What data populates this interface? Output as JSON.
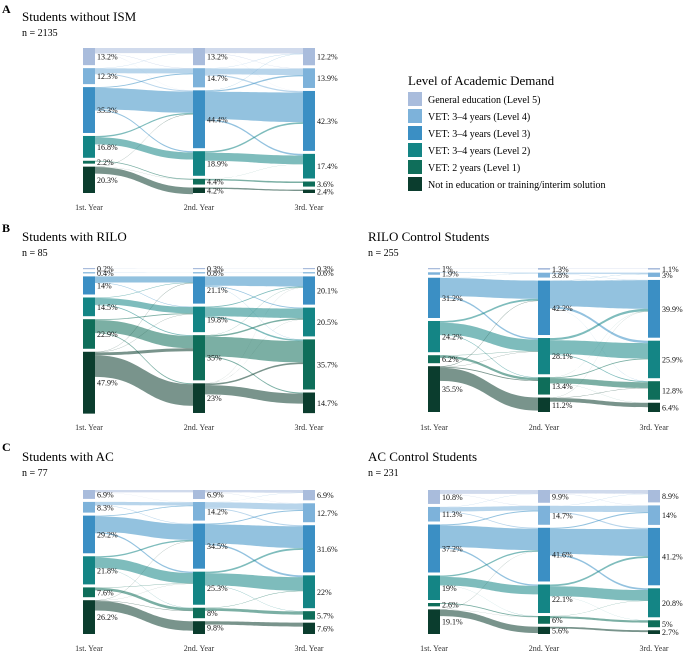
{
  "legend": {
    "title": "Level of Academic Demand",
    "items": [
      {
        "label": "General education (Level 5)",
        "color": "#a9bcdc"
      },
      {
        "label": "VET: 3–4 years (Level 4)",
        "color": "#7db2da"
      },
      {
        "label": "VET: 3–4 years (Level 3)",
        "color": "#3b8fc4"
      },
      {
        "label": "VET: 3–4 years (Level 2)",
        "color": "#148585"
      },
      {
        "label": "VET: 2 years (Level 1)",
        "color": "#0f6e5a"
      },
      {
        "label": "Not in education or training/interim solution",
        "color": "#0b3d2e"
      }
    ]
  },
  "chart_data": [
    {
      "type": "sankey",
      "panel": "A",
      "title": "Students without ISM",
      "n": "n = 2135",
      "columns": [
        "1st. Year",
        "2nd. Year",
        "3rd. Year"
      ],
      "values": [
        [
          13.2,
          12.3,
          35.3,
          16.8,
          2.2,
          20.3
        ],
        [
          13.2,
          14.7,
          44.4,
          18.9,
          4.4,
          4.2
        ],
        [
          12.2,
          13.9,
          42.3,
          17.4,
          3.6,
          2.4
        ]
      ],
      "labels": [
        [
          "13.2%",
          "12.3%",
          "35.3%",
          "16.8%",
          "2.2%",
          "20.3%"
        ],
        [
          "13.2%",
          "14.7%",
          "44.4%",
          "18.9%",
          "4.4%",
          "4.2%"
        ],
        [
          "12.2%",
          "13.9%",
          "42.3%",
          "17.4%",
          "3.6%",
          "2.4%"
        ]
      ]
    },
    {
      "type": "sankey",
      "panel": "B",
      "title": "Students with RILO",
      "n": "n = 85",
      "columns": [
        "1st. Year",
        "2nd. Year",
        "3rd. Year"
      ],
      "values": [
        [
          0.2,
          0.4,
          14,
          14.5,
          22.9,
          47.9
        ],
        [
          0.3,
          0.8,
          21.1,
          19.8,
          35,
          23
        ],
        [
          0.3,
          0.6,
          20.1,
          20.5,
          35.7,
          14.7
        ]
      ],
      "labels": [
        [
          "0.2%",
          "0.4%",
          "14%",
          "14.5%",
          "22.9%",
          "47.9%"
        ],
        [
          "0.3%",
          "0.8%",
          "21.1%",
          "19.8%",
          "35%",
          "23%"
        ],
        [
          "0.3%",
          "0.6%",
          "20.1%",
          "20.5%",
          "35.7%",
          "14.7%"
        ]
      ]
    },
    {
      "type": "sankey",
      "panel": "",
      "title": "RILO Control Students",
      "n": "n = 255",
      "columns": [
        "1st. Year",
        "2nd. Year",
        "3rd. Year"
      ],
      "values": [
        [
          1,
          1.9,
          31.2,
          24.2,
          6.2,
          35.5
        ],
        [
          1.3,
          3.8,
          42.2,
          28.1,
          13.4,
          11.2
        ],
        [
          1.1,
          3,
          39.9,
          25.9,
          12.8,
          6.4
        ]
      ],
      "labels": [
        [
          "1%",
          "1.9%",
          "31.2%",
          "24.2%",
          "6.2%",
          "35.5%"
        ],
        [
          "1.3%",
          "3.8%",
          "42.2%",
          "28.1%",
          "13.4%",
          "11.2%"
        ],
        [
          "1.1%",
          "3%",
          "39.9%",
          "25.9%",
          "12.8%",
          "6.4%"
        ]
      ]
    },
    {
      "type": "sankey",
      "panel": "C",
      "title": "Students with AC",
      "n": "n = 77",
      "columns": [
        "1st. Year",
        "2nd. Year",
        "3rd. Year"
      ],
      "values": [
        [
          6.9,
          8.3,
          29.2,
          21.8,
          7.6,
          26.2
        ],
        [
          6.9,
          14.2,
          34.5,
          25.3,
          8,
          9.8
        ],
        [
          6.9,
          12.7,
          31.6,
          22,
          5.7,
          7.6
        ]
      ],
      "labels": [
        [
          "6.9%",
          "8.3%",
          "29.2%",
          "21.8%",
          "7.6%",
          "26.2%"
        ],
        [
          "6.9%",
          "14.2%",
          "34.5%",
          "25.3%",
          "8%",
          "9.8%"
        ],
        [
          "6.9%",
          "12.7%",
          "31.6%",
          "22%",
          "5.7%",
          "7.6%"
        ]
      ]
    },
    {
      "type": "sankey",
      "panel": "",
      "title": "AC Control Students",
      "n": "n = 231",
      "columns": [
        "1st. Year",
        "2nd. Year",
        "3rd. Year"
      ],
      "values": [
        [
          10.8,
          11.3,
          37.2,
          19,
          2.6,
          19.1
        ],
        [
          9.9,
          14.7,
          41.6,
          22.1,
          6,
          5.6
        ],
        [
          8.9,
          14,
          41.2,
          20.8,
          5,
          2.7
        ]
      ],
      "labels": [
        [
          "10.8%",
          "11.3%",
          "37.2%",
          "19%",
          "2.6%",
          "19.1%"
        ],
        [
          "9.9%",
          "14.7%",
          "41.6%",
          "22.1%",
          "6%",
          "5.6%"
        ],
        [
          "8.9%",
          "14%",
          "41.2%",
          "20.8%",
          "5%",
          "2.7%"
        ]
      ]
    }
  ]
}
